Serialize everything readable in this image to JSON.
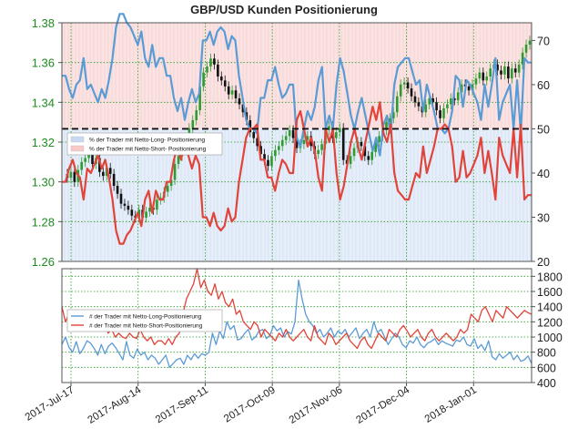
{
  "chart_data": [
    {
      "type": "line",
      "title": "GBP/USD Kunden Positionierung",
      "x_ticks": [
        "2017-Jul-17",
        "2017-Aug-14",
        "2017-Sep-11",
        "2017-Oct-09",
        "2017-Nov-06",
        "2017-Dec-04",
        "2018-Jan-01"
      ],
      "y_left": {
        "ticks": [
          "1.26",
          "1.28",
          "1.30",
          "1.32",
          "1.34",
          "1.36",
          "1.38"
        ],
        "range": [
          1.26,
          1.38
        ]
      },
      "y_right": {
        "ticks": [
          "20",
          "30",
          "40",
          "50",
          "60",
          "70"
        ],
        "range": [
          20,
          74
        ],
        "reference_line": 50
      },
      "legend": {
        "position": "middle-left",
        "entries": [
          {
            "label": "% der Trader mit Netto-Long- Positionierung",
            "color": "#c9d9f2"
          },
          {
            "label": "% der Trader mit Netto-Short- Positionierung",
            "color": "#f7c9c9"
          }
        ]
      },
      "series": [
        {
          "name": "% der Trader mit Netto-Long- Positionierung",
          "color": "#5b9bd5",
          "values": [
            62,
            62,
            59,
            57,
            60,
            61,
            66,
            59,
            60,
            58,
            56,
            59,
            57,
            61,
            66,
            73,
            76,
            76,
            74,
            73,
            71,
            69,
            72,
            66,
            64,
            69,
            64,
            66,
            66,
            62,
            62,
            57,
            54,
            57,
            52,
            56,
            59,
            56,
            58,
            70,
            70,
            72,
            69,
            72,
            73,
            72,
            68,
            71,
            70,
            62,
            57,
            52,
            50,
            50,
            49,
            57,
            57,
            61,
            61,
            64,
            60,
            57,
            58,
            60,
            60,
            48,
            46,
            50,
            54,
            52,
            55,
            61,
            64,
            50,
            53,
            50,
            60,
            66,
            63,
            58,
            53,
            50,
            54,
            57,
            53,
            49,
            45,
            48,
            44,
            51,
            53,
            49,
            60,
            64,
            65,
            66,
            66,
            63,
            60,
            61,
            54,
            60,
            57,
            54,
            50,
            50,
            49,
            50,
            54,
            62,
            61,
            55,
            61,
            60,
            58,
            56,
            52,
            60,
            55,
            60,
            66,
            52,
            56,
            58,
            60,
            50,
            61,
            49,
            66,
            65,
            65
          ]
        },
        {
          "name": "% der Trader mit Netto-Short- Positionierung",
          "color": "#e0443a",
          "values": [
            38,
            38,
            41,
            43,
            40,
            39,
            34,
            41,
            40,
            42,
            44,
            41,
            43,
            39,
            34,
            27,
            24,
            24,
            26,
            27,
            29,
            31,
            28,
            34,
            36,
            31,
            36,
            34,
            34,
            38,
            38,
            43,
            46,
            43,
            48,
            44,
            41,
            44,
            42,
            30,
            30,
            28,
            31,
            28,
            27,
            28,
            32,
            29,
            30,
            38,
            43,
            48,
            50,
            50,
            51,
            43,
            43,
            39,
            39,
            36,
            40,
            43,
            42,
            40,
            40,
            52,
            54,
            50,
            46,
            48,
            45,
            39,
            36,
            50,
            47,
            50,
            40,
            34,
            37,
            42,
            47,
            50,
            46,
            43,
            47,
            51,
            55,
            52,
            56,
            49,
            47,
            51,
            40,
            36,
            35,
            34,
            34,
            37,
            40,
            39,
            46,
            40,
            43,
            46,
            50,
            50,
            51,
            50,
            46,
            38,
            39,
            45,
            39,
            40,
            42,
            44,
            48,
            40,
            45,
            40,
            34,
            48,
            44,
            42,
            40,
            50,
            39,
            51,
            34,
            35,
            35
          ]
        }
      ],
      "price_series": {
        "name": "GBP/USD",
        "values": [
          1.304,
          1.302,
          1.305,
          1.3,
          1.306,
          1.31,
          1.312,
          1.315,
          1.309,
          1.312,
          1.305,
          1.303,
          1.307,
          1.304,
          1.298,
          1.294,
          1.289,
          1.288,
          1.286,
          1.283,
          1.282,
          1.286,
          1.282,
          1.285,
          1.287,
          1.286,
          1.291,
          1.292,
          1.295,
          1.298,
          1.301,
          1.309,
          1.313,
          1.32,
          1.321,
          1.327,
          1.331,
          1.336,
          1.348,
          1.355,
          1.358,
          1.362,
          1.359,
          1.353,
          1.351,
          1.348,
          1.344,
          1.346,
          1.342,
          1.339,
          1.335,
          1.331,
          1.325,
          1.322,
          1.318,
          1.314,
          1.311,
          1.308,
          1.313,
          1.316,
          1.318,
          1.321,
          1.323,
          1.326,
          1.322,
          1.317,
          1.319,
          1.321,
          1.323,
          1.318,
          1.314,
          1.316,
          1.319,
          1.326,
          1.328,
          1.322,
          1.325,
          1.327,
          1.311,
          1.309,
          1.313,
          1.317,
          1.32,
          1.318,
          1.313,
          1.311,
          1.315,
          1.32,
          1.323,
          1.326,
          1.33,
          1.332,
          1.335,
          1.343,
          1.349,
          1.35,
          1.347,
          1.343,
          1.34,
          1.338,
          1.335,
          1.339,
          1.342,
          1.34,
          1.336,
          1.332,
          1.337,
          1.339,
          1.342,
          1.341,
          1.345,
          1.349,
          1.348,
          1.346,
          1.349,
          1.352,
          1.355,
          1.351,
          1.353,
          1.357,
          1.359,
          1.356,
          1.354,
          1.358,
          1.352,
          1.357,
          1.355,
          1.359,
          1.365,
          1.369,
          1.371
        ]
      }
    },
    {
      "type": "line",
      "y_right": {
        "ticks": [
          "400",
          "600",
          "800",
          "1000",
          "1200",
          "1400",
          "1600",
          "1800"
        ],
        "range": [
          400,
          1900
        ]
      },
      "legend": {
        "position": "middle-left",
        "entries": [
          {
            "label": "# der Trader mit Netto-Long-Positionierung",
            "color": "#5b9bd5"
          },
          {
            "label": "# der Trader mit Netto-Short-Positionierung",
            "color": "#e0443a"
          }
        ]
      },
      "series": [
        {
          "name": "# der Trader mit Netto-Long-Positionierung",
          "color": "#5b9bd5",
          "values": [
            900,
            1000,
            860,
            800,
            940,
            780,
            850,
            950,
            920,
            850,
            760,
            900,
            780,
            880,
            920,
            860,
            780,
            700,
            940,
            760,
            720,
            840,
            760,
            800,
            700,
            760,
            720,
            640,
            700,
            760,
            600,
            650,
            700,
            720,
            640,
            760,
            700,
            780,
            720,
            780,
            760,
            800,
            1050,
            900,
            1080,
            980,
            1200,
            1100,
            1150,
            960,
            980,
            1050,
            1100,
            960,
            1000,
            1080,
            1100,
            980,
            1020,
            1150,
            1080,
            1120,
            1000,
            1070,
            1040,
            1200,
            1750,
            1500,
            1300,
            1200,
            1150,
            1050,
            1100,
            1000,
            1050,
            1120,
            1000,
            1080,
            1040,
            1100,
            1000,
            1060,
            1120,
            980,
            1050,
            1100,
            1000,
            1200,
            1060,
            1100,
            1000,
            900,
            980,
            1050,
            1000,
            900,
            860,
            950,
            920,
            1000,
            900,
            860,
            920,
            940,
            980,
            900,
            950,
            920,
            900,
            880,
            960,
            940,
            1000,
            900,
            880,
            980,
            850,
            900,
            820,
            950,
            740,
            700,
            780,
            720,
            760,
            800,
            700,
            760,
            680,
            700,
            750,
            650
          ]
        },
        {
          "name": "# der Trader mit Netto-Short-Positionierung",
          "color": "#e0443a",
          "values": [
            1400,
            1200,
            1300,
            1280,
            1250,
            1200,
            1180,
            1150,
            1100,
            1200,
            1150,
            1100,
            1180,
            1050,
            1100,
            1000,
            1050,
            1000,
            980,
            1050,
            1000,
            980,
            1100,
            1000,
            950,
            1000,
            900,
            950,
            950,
            900,
            980,
            900,
            1000,
            1050,
            1300,
            1500,
            1600,
            1700,
            1900,
            1650,
            1750,
            1600,
            1550,
            1700,
            1500,
            1600,
            1450,
            1400,
            1500,
            1300,
            1350,
            1200,
            1150,
            1100,
            1200,
            1150,
            1000,
            1100,
            1050,
            1000,
            950,
            1050,
            1000,
            1100,
            1000,
            950,
            1000,
            1050,
            1100,
            1000,
            950,
            1150,
            1000,
            950,
            900,
            1050,
            1000,
            900,
            950,
            1000,
            1050,
            950,
            900,
            850,
            950,
            1000,
            900,
            850,
            950,
            1050,
            1000,
            950,
            1100,
            1050,
            1000,
            1100,
            1150,
            1080,
            1000,
            1050,
            1100,
            1000,
            950,
            1050,
            1100,
            1000,
            950,
            1000,
            1050,
            1000,
            950,
            1000,
            1100,
            1050,
            1100,
            1300,
            1250,
            1200,
            1350,
            1400,
            1300,
            1200,
            1350,
            1300,
            1250,
            1400,
            1350,
            1300,
            1250,
            1300,
            1350,
            1320,
            1300
          ]
        }
      ]
    }
  ]
}
